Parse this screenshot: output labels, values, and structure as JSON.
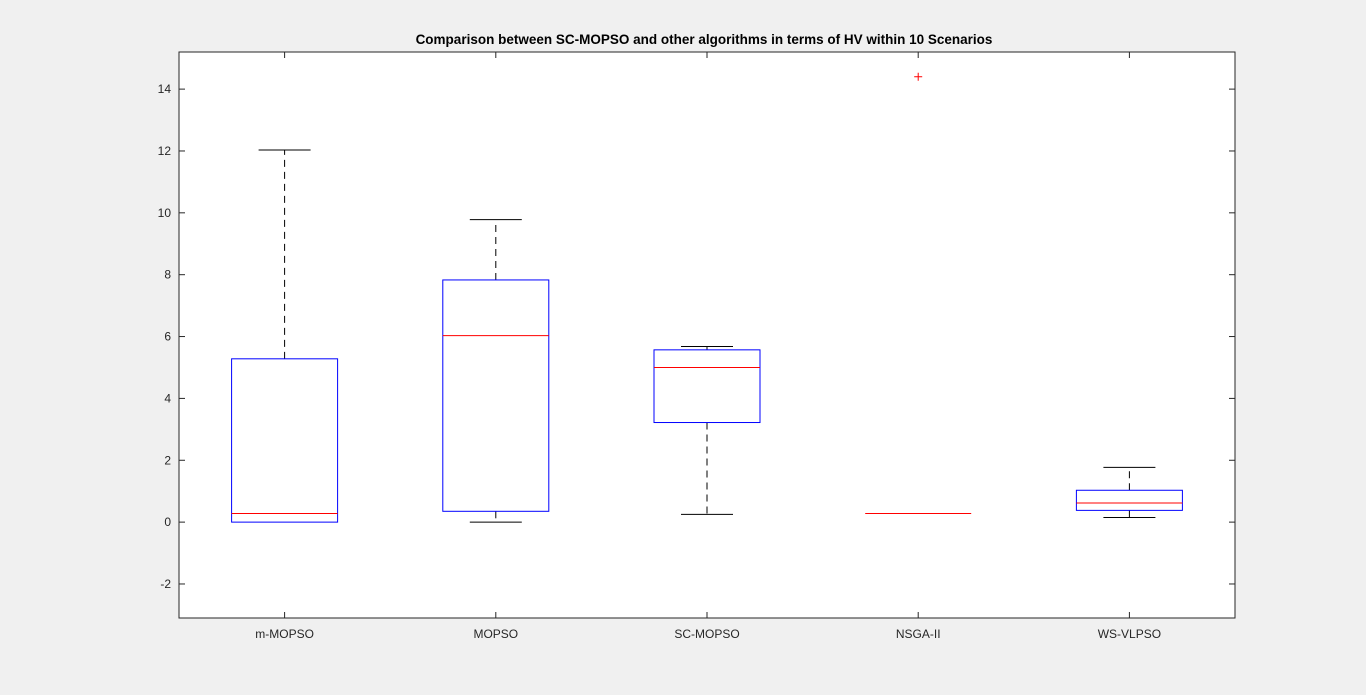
{
  "colors": {
    "figure_background": "#f0f0f0",
    "axes_background": "#ffffff",
    "box": "#0000ff",
    "median": "#ff0000",
    "whisker": "#000000",
    "outlier": "#ff0000",
    "axes": "#262626"
  },
  "chart_data": {
    "type": "box",
    "title": "Comparison between SC-MOPSO and other algorithms in terms of HV within 10 Scenarios",
    "xlabel": "",
    "ylabel": "",
    "ylim": [
      -3.1,
      15.2
    ],
    "yticks": [
      "-2",
      "0",
      "2",
      "4",
      "6",
      "8",
      "10",
      "12",
      "14"
    ],
    "categories": [
      "m-MOPSO",
      "MOPSO",
      "SC-MOPSO",
      "NSGA-II",
      "WS-VLPSO"
    ],
    "boxes": [
      {
        "category": "m-MOPSO",
        "min": 0.0,
        "q1": 0.0,
        "median": 0.28,
        "q3": 5.28,
        "max": 12.03,
        "outliers": []
      },
      {
        "category": "MOPSO",
        "min": 0.0,
        "q1": 0.35,
        "median": 6.03,
        "q3": 7.83,
        "max": 9.78,
        "outliers": []
      },
      {
        "category": "SC-MOPSO",
        "min": 0.25,
        "q1": 3.22,
        "median": 5.0,
        "q3": 5.57,
        "max": 5.68,
        "outliers": []
      },
      {
        "category": "NSGA-II",
        "min": 0.28,
        "q1": 0.28,
        "median": 0.28,
        "q3": 0.28,
        "max": 0.28,
        "outliers": [
          14.4
        ]
      },
      {
        "category": "WS-VLPSO",
        "min": 0.15,
        "q1": 0.38,
        "median": 0.62,
        "q3": 1.03,
        "max": 1.77,
        "outliers": []
      }
    ],
    "grid": false,
    "legend": "none"
  }
}
